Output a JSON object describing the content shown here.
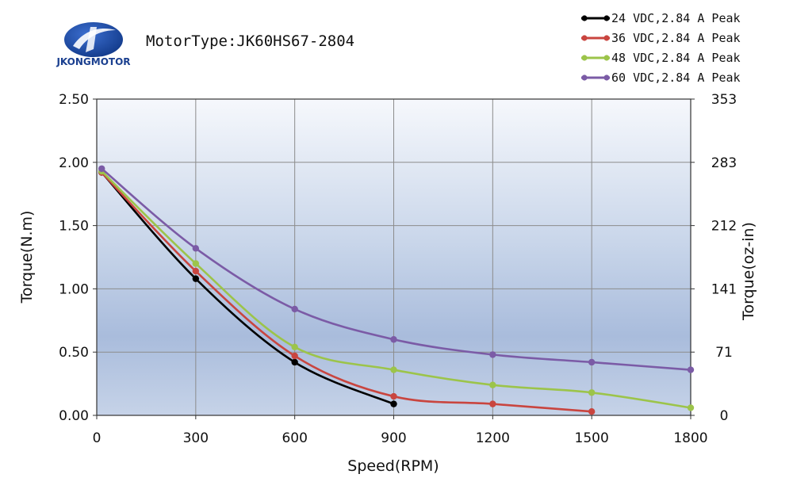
{
  "brand": {
    "name": "JKONGMOTOR"
  },
  "header": {
    "motor_type": "MotorType:JK60HS67-2804"
  },
  "chart_data": {
    "type": "line",
    "xlabel": "Speed(RPM)",
    "ylabel": "Torque(N.m)",
    "y2label": "Torque(oz-in)",
    "xlim": [
      0,
      1800
    ],
    "ylim": [
      0,
      2.5
    ],
    "x_ticks": [
      "0",
      "300",
      "600",
      "900",
      "1200",
      "1500",
      "1800"
    ],
    "y_ticks": [
      "0.00",
      "0.50",
      "1.00",
      "1.50",
      "2.00",
      "2.50"
    ],
    "y2_ticks": [
      "0",
      "71",
      "141",
      "212",
      "283",
      "353"
    ],
    "grid": true,
    "legend_position": "top-right",
    "series": [
      {
        "name": "24 VDC,2.84 A Peak",
        "color": "#000000",
        "x": [
          15,
          300,
          600,
          900
        ],
        "y": [
          1.92,
          1.08,
          0.42,
          0.09
        ]
      },
      {
        "name": "36 VDC,2.84 A Peak",
        "color": "#c9453f",
        "x": [
          15,
          300,
          600,
          900,
          1200,
          1500
        ],
        "y": [
          1.92,
          1.14,
          0.47,
          0.15,
          0.09,
          0.03
        ]
      },
      {
        "name": "48 VDC,2.84 A Peak",
        "color": "#9cc44a",
        "x": [
          15,
          300,
          600,
          900,
          1200,
          1500,
          1800
        ],
        "y": [
          1.93,
          1.2,
          0.54,
          0.36,
          0.24,
          0.18,
          0.06
        ]
      },
      {
        "name": "60 VDC,2.84 A Peak",
        "color": "#7b5ba6",
        "x": [
          15,
          300,
          600,
          900,
          1200,
          1500,
          1800
        ],
        "y": [
          1.95,
          1.32,
          0.84,
          0.6,
          0.48,
          0.42,
          0.36
        ]
      }
    ]
  }
}
